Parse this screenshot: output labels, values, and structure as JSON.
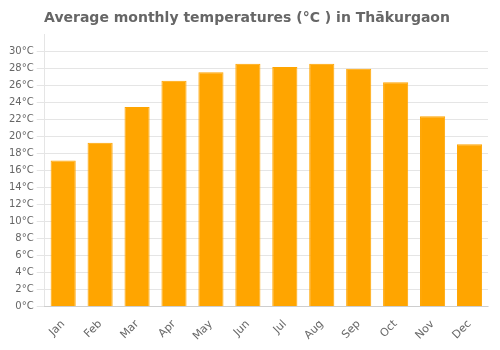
{
  "chart_data": {
    "type": "bar",
    "title": "Average monthly temperatures (°C ) in Thākurgaon",
    "categories": [
      "Jan",
      "Feb",
      "Mar",
      "Apr",
      "May",
      "Jun",
      "Jul",
      "Aug",
      "Sep",
      "Oct",
      "Nov",
      "Dec"
    ],
    "values": [
      17.2,
      19.3,
      23.5,
      26.6,
      27.6,
      28.6,
      28.2,
      28.6,
      28.0,
      26.4,
      22.4,
      19.1
    ],
    "color": "#FFA500",
    "ylim": [
      0,
      32
    ],
    "yticks": [
      {
        "value": 0,
        "label": "0°C"
      },
      {
        "value": 2,
        "label": "2°C"
      },
      {
        "value": 4,
        "label": "4°C"
      },
      {
        "value": 6,
        "label": "6°C"
      },
      {
        "value": 8,
        "label": "8°C"
      },
      {
        "value": 10,
        "label": "10°C"
      },
      {
        "value": 12,
        "label": "12°C"
      },
      {
        "value": 14,
        "label": "14°C"
      },
      {
        "value": 16,
        "label": "16°C"
      },
      {
        "value": 18,
        "label": "18°C"
      },
      {
        "value": 20,
        "label": "20°C"
      },
      {
        "value": 22,
        "label": "22°C"
      },
      {
        "value": 24,
        "label": "24°C"
      },
      {
        "value": 26,
        "label": "26°C"
      },
      {
        "value": 28,
        "label": "28°C"
      },
      {
        "value": 30,
        "label": "30°C"
      }
    ],
    "grid": true
  }
}
